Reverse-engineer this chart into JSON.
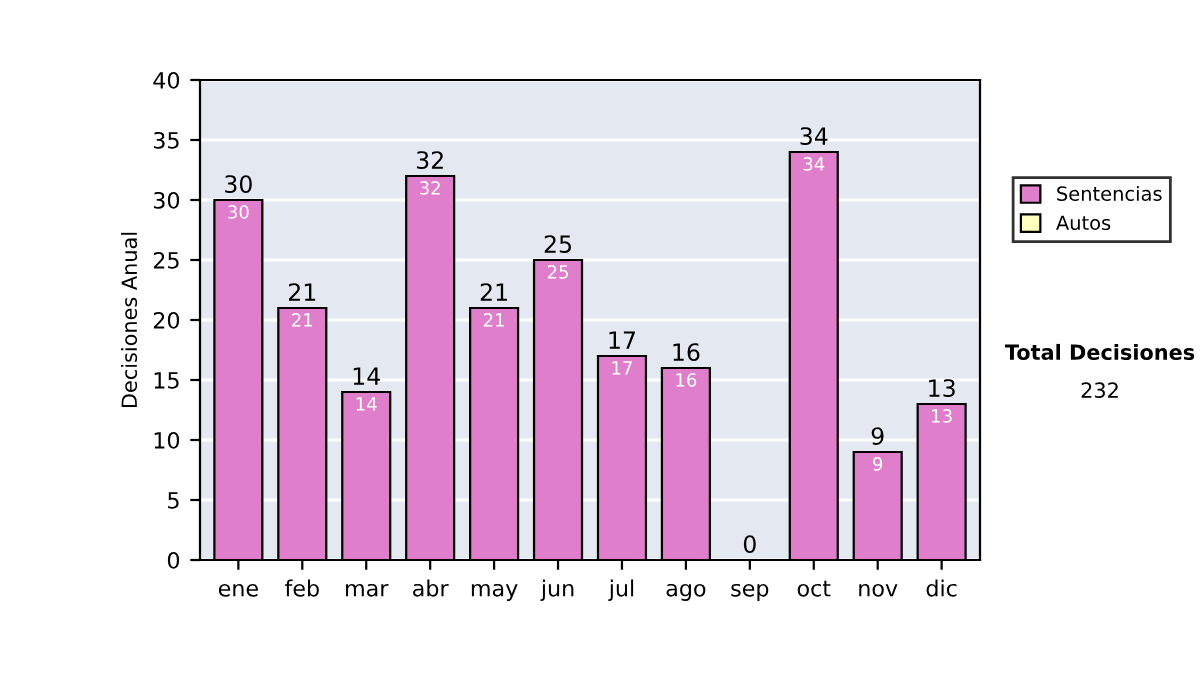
{
  "chart_data": {
    "type": "bar",
    "ylabel": "Decisiones Anual",
    "categories": [
      "ene",
      "feb",
      "mar",
      "abr",
      "may",
      "jun",
      "jul",
      "ago",
      "sep",
      "oct",
      "nov",
      "dic"
    ],
    "series": [
      {
        "name": "Sentencias",
        "color": "#df7fcb",
        "values": [
          30,
          21,
          14,
          32,
          21,
          25,
          17,
          16,
          0,
          34,
          9,
          13
        ],
        "value_labels": [
          "30",
          "21",
          "14",
          "32",
          "21",
          "25",
          "17",
          "16",
          null,
          "34",
          "9",
          "13"
        ]
      },
      {
        "name": "Autos",
        "color": "#ffffc0",
        "values": [
          0,
          0,
          0,
          0,
          0,
          0,
          0,
          0,
          0,
          0,
          0,
          0
        ]
      }
    ],
    "stacked": true,
    "totals": [
      "30",
      "21",
      "14",
      "32",
      "21",
      "25",
      "17",
      "16",
      "0",
      "34",
      "9",
      "13"
    ],
    "ylim": [
      0,
      40
    ],
    "yticks": [
      0,
      5,
      10,
      15,
      20,
      25,
      30,
      35,
      40
    ],
    "grid": "y",
    "legend": "right",
    "annotations": [
      "Total Decisiones",
      "232"
    ]
  }
}
